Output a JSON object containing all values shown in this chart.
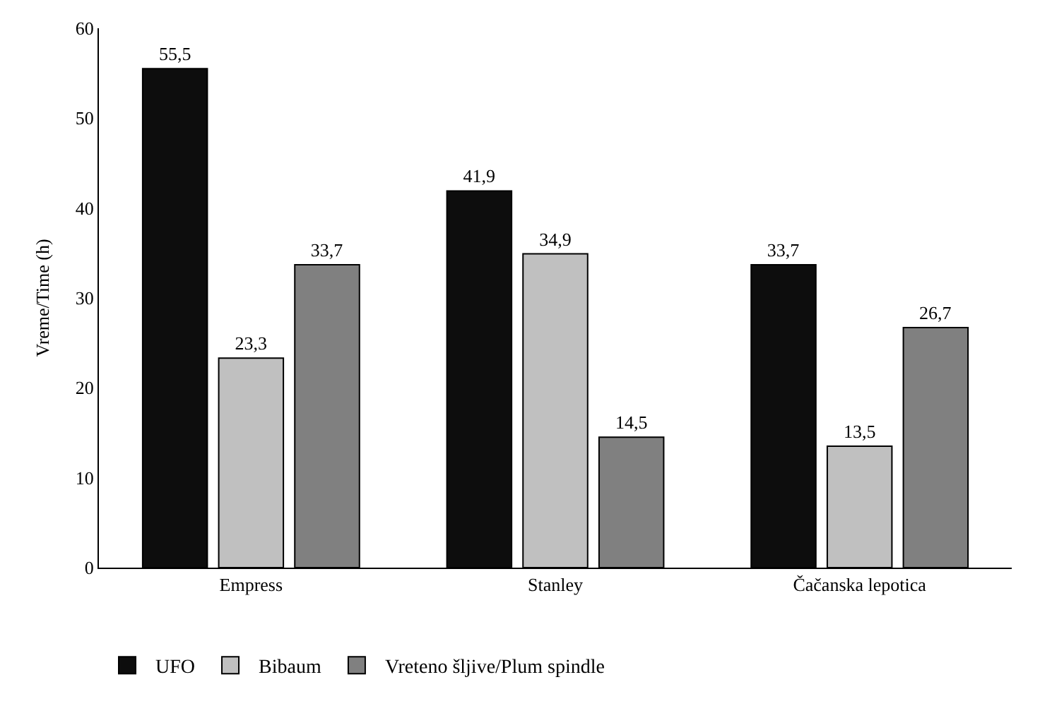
{
  "chart_data": {
    "type": "bar",
    "ylabel": "Vreme/Time (h)",
    "categories": [
      "Empress",
      "Stanley",
      "Čačanska lepotica"
    ],
    "series": [
      {
        "name": "UFO",
        "color": "#0d0d0d",
        "values": [
          55.5,
          41.9,
          33.7
        ],
        "value_labels": [
          "55,5",
          "41,9",
          "33,7"
        ]
      },
      {
        "name": "Bibaum",
        "color": "#c0c0c0",
        "values": [
          23.3,
          34.9,
          13.5
        ],
        "value_labels": [
          "23,3",
          "34,9",
          "13,5"
        ]
      },
      {
        "name": "Vreteno šljive/Plum spindle",
        "color": "#808080",
        "values": [
          33.7,
          14.5,
          26.7
        ],
        "value_labels": [
          "33,7",
          "14,5",
          "26,7"
        ]
      }
    ],
    "ylim": [
      0,
      60
    ],
    "yticks": [
      0,
      10,
      20,
      30,
      40,
      50,
      60
    ],
    "grid": false,
    "legend": "bottom"
  }
}
